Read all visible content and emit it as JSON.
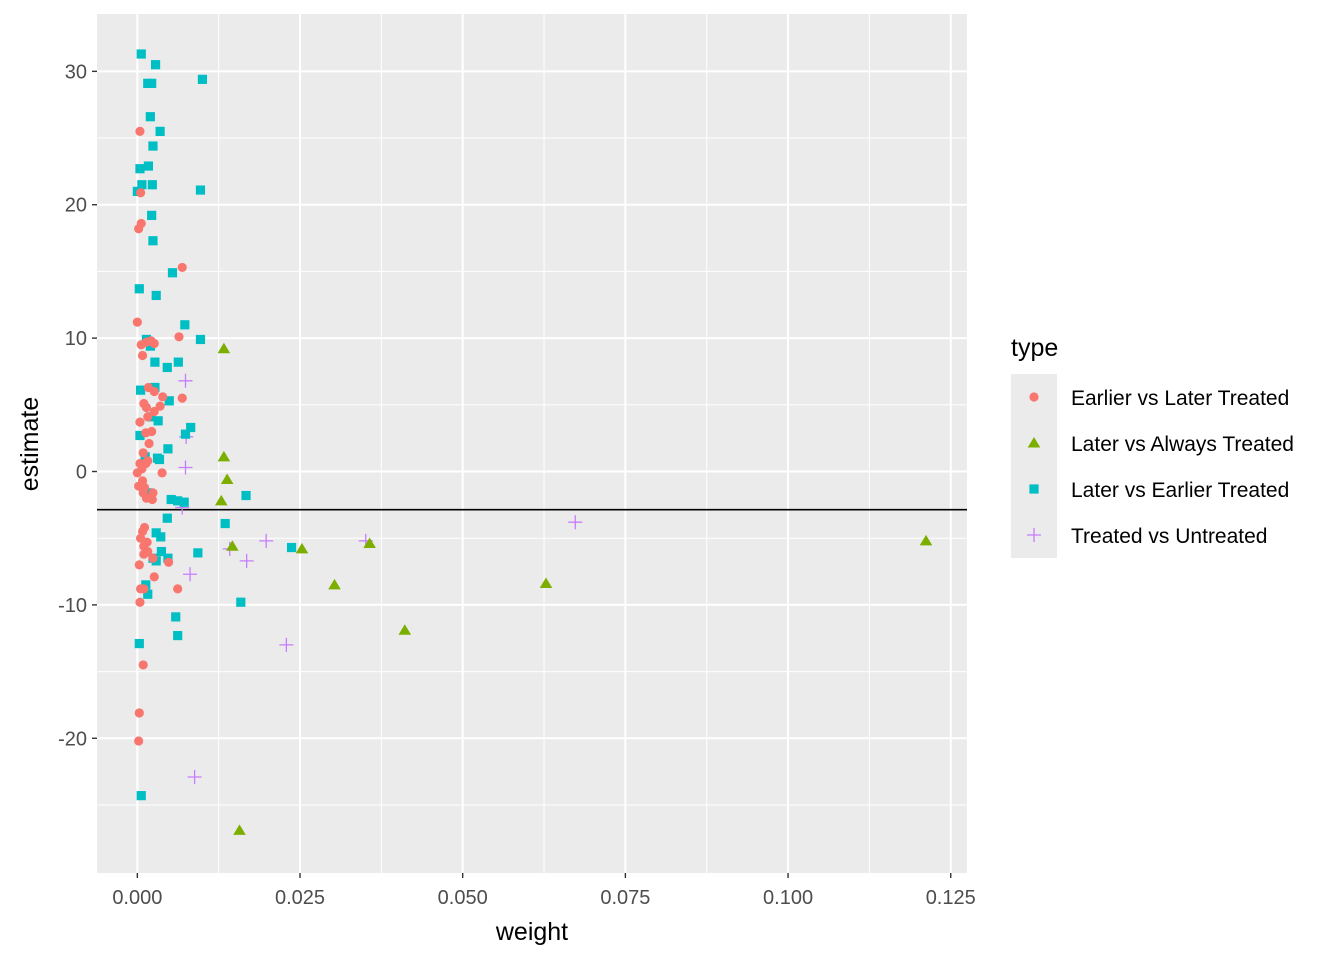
{
  "chart_data": {
    "type": "scatter",
    "title": "",
    "xlabel": "weight",
    "ylabel": "estimate",
    "xlim": [
      -0.0062,
      0.1275
    ],
    "ylim": [
      -30.1,
      34.3
    ],
    "x_ticks": [
      0,
      0.025,
      0.05,
      0.075,
      0.1,
      0.125
    ],
    "x_tick_labels": [
      "0.000",
      "0.025",
      "0.050",
      "0.075",
      "0.100",
      "0.125"
    ],
    "y_ticks": [
      -20,
      -10,
      0,
      10,
      20,
      30
    ],
    "y_tick_labels": [
      "-20",
      "-10",
      "0",
      "10",
      "20",
      "30"
    ],
    "grid": true,
    "panel_background": "#ebebeb",
    "hline": -2.86,
    "legend_position": "right",
    "legend_title": "type",
    "series": [
      {
        "name": "Earlier vs Later Treated",
        "color": "#F8766D",
        "marker": "circle",
        "points": [
          [
            0.0004,
            25.5
          ],
          [
            0.0005,
            20.9
          ],
          [
            0.0006,
            18.6
          ],
          [
            0.0002,
            18.2
          ],
          [
            0.0069,
            15.3
          ],
          [
            0.0,
            11.2
          ],
          [
            0.0021,
            9.8
          ],
          [
            0.0006,
            9.5
          ],
          [
            0.0026,
            9.6
          ],
          [
            0.0014,
            9.7
          ],
          [
            0.0064,
            10.1
          ],
          [
            0.0008,
            8.7
          ],
          [
            0.0017,
            6.3
          ],
          [
            0.0026,
            6.0
          ],
          [
            0.0039,
            5.6
          ],
          [
            0.0069,
            5.5
          ],
          [
            0.001,
            5.1
          ],
          [
            0.0014,
            4.8
          ],
          [
            0.0026,
            4.5
          ],
          [
            0.0035,
            4.9
          ],
          [
            0.0016,
            4.1
          ],
          [
            0.0004,
            3.7
          ],
          [
            0.0022,
            3.0
          ],
          [
            0.0013,
            2.9
          ],
          [
            0.0018,
            2.1
          ],
          [
            0.0009,
            1.4
          ],
          [
            0.0004,
            0.6
          ],
          [
            0.0013,
            0.6
          ],
          [
            0.0016,
            0.8
          ],
          [
            0.0007,
            0.2
          ],
          [
            0.0,
            -0.1
          ],
          [
            0.0038,
            -0.1
          ],
          [
            0.0008,
            -0.7
          ],
          [
            0.0002,
            -1.1
          ],
          [
            0.0011,
            -1.2
          ],
          [
            0.0009,
            -1.6
          ],
          [
            0.0024,
            -1.6
          ],
          [
            0.0014,
            -2.0
          ],
          [
            0.0023,
            -2.1
          ],
          [
            0.0011,
            -4.2
          ],
          [
            0.0008,
            -4.5
          ],
          [
            0.0005,
            -5.0
          ],
          [
            0.0015,
            -5.3
          ],
          [
            0.001,
            -5.6
          ],
          [
            0.0016,
            -6.0
          ],
          [
            0.001,
            -6.2
          ],
          [
            0.0024,
            -6.5
          ],
          [
            0.0048,
            -6.8
          ],
          [
            0.0003,
            -7.0
          ],
          [
            0.0026,
            -7.9
          ],
          [
            0.0005,
            -8.8
          ],
          [
            0.001,
            -8.8
          ],
          [
            0.0062,
            -8.8
          ],
          [
            0.0004,
            -9.8
          ],
          [
            0.0009,
            -14.5
          ],
          [
            0.0003,
            -18.1
          ],
          [
            0.0002,
            -20.2
          ]
        ]
      },
      {
        "name": "Later vs Always Treated",
        "color": "#7CAE00",
        "marker": "triangle",
        "points": [
          [
            0.0133,
            9.2
          ],
          [
            0.0133,
            1.1
          ],
          [
            0.0138,
            -0.6
          ],
          [
            0.0129,
            -2.2
          ],
          [
            0.0146,
            -5.6
          ],
          [
            0.0253,
            -5.8
          ],
          [
            0.0357,
            -5.4
          ],
          [
            0.1212,
            -5.2
          ],
          [
            0.0303,
            -8.5
          ],
          [
            0.0628,
            -8.4
          ],
          [
            0.0411,
            -11.9
          ],
          [
            0.0157,
            -26.9
          ]
        ]
      },
      {
        "name": "Later vs Earlier Treated",
        "color": "#00BFC4",
        "marker": "square",
        "points": [
          [
            0.0006,
            31.3
          ],
          [
            0.0028,
            30.5
          ],
          [
            0.01,
            29.4
          ],
          [
            0.0016,
            29.1
          ],
          [
            0.0022,
            29.1
          ],
          [
            0.002,
            26.6
          ],
          [
            0.0035,
            25.5
          ],
          [
            0.0024,
            24.4
          ],
          [
            0.0004,
            22.7
          ],
          [
            0.0017,
            22.9
          ],
          [
            0.0007,
            21.5
          ],
          [
            0.0023,
            21.5
          ],
          [
            0.0,
            21.0
          ],
          [
            0.0097,
            21.1
          ],
          [
            0.0022,
            19.2
          ],
          [
            0.0024,
            17.3
          ],
          [
            0.0054,
            14.9
          ],
          [
            0.0003,
            13.7
          ],
          [
            0.0029,
            13.2
          ],
          [
            0.0073,
            11.0
          ],
          [
            0.0014,
            9.9
          ],
          [
            0.0097,
            9.9
          ],
          [
            0.002,
            9.4
          ],
          [
            0.0027,
            8.2
          ],
          [
            0.0063,
            8.2
          ],
          [
            0.0046,
            7.8
          ],
          [
            0.0027,
            6.3
          ],
          [
            0.0005,
            6.1
          ],
          [
            0.0049,
            5.3
          ],
          [
            0.0021,
            4.1
          ],
          [
            0.0032,
            3.8
          ],
          [
            0.0082,
            3.3
          ],
          [
            0.0074,
            2.8
          ],
          [
            0.0004,
            2.7
          ],
          [
            0.0047,
            1.7
          ],
          [
            0.0012,
            1.1
          ],
          [
            0.0031,
            1.0
          ],
          [
            0.0034,
            0.9
          ],
          [
            0.0016,
            -1.6
          ],
          [
            0.0052,
            -2.1
          ],
          [
            0.0062,
            -2.2
          ],
          [
            0.0072,
            -2.3
          ],
          [
            0.0167,
            -1.8
          ],
          [
            0.0046,
            -3.5
          ],
          [
            0.0135,
            -3.9
          ],
          [
            0.0029,
            -4.6
          ],
          [
            0.0036,
            -4.9
          ],
          [
            0.0237,
            -5.7
          ],
          [
            0.0037,
            -6.0
          ],
          [
            0.0093,
            -6.1
          ],
          [
            0.0047,
            -6.5
          ],
          [
            0.0024,
            -6.5
          ],
          [
            0.0029,
            -6.7
          ],
          [
            0.0013,
            -8.5
          ],
          [
            0.0016,
            -9.2
          ],
          [
            0.0159,
            -9.8
          ],
          [
            0.0059,
            -10.9
          ],
          [
            0.0062,
            -12.3
          ],
          [
            0.0003,
            -12.9
          ],
          [
            0.0006,
            -24.3
          ]
        ]
      },
      {
        "name": "Treated vs Untreated",
        "color": "#C77CFF",
        "marker": "plus",
        "points": [
          [
            0.0074,
            6.8
          ],
          [
            0.0075,
            2.6
          ],
          [
            0.0074,
            0.3
          ],
          [
            0.0069,
            -2.7
          ],
          [
            0.0673,
            -3.8
          ],
          [
            0.0198,
            -5.2
          ],
          [
            0.0351,
            -5.2
          ],
          [
            0.0142,
            -5.8
          ],
          [
            0.0168,
            -6.7
          ],
          [
            0.0081,
            -7.7
          ],
          [
            0.0229,
            -13.0
          ],
          [
            0.0088,
            -22.9
          ]
        ]
      }
    ]
  }
}
